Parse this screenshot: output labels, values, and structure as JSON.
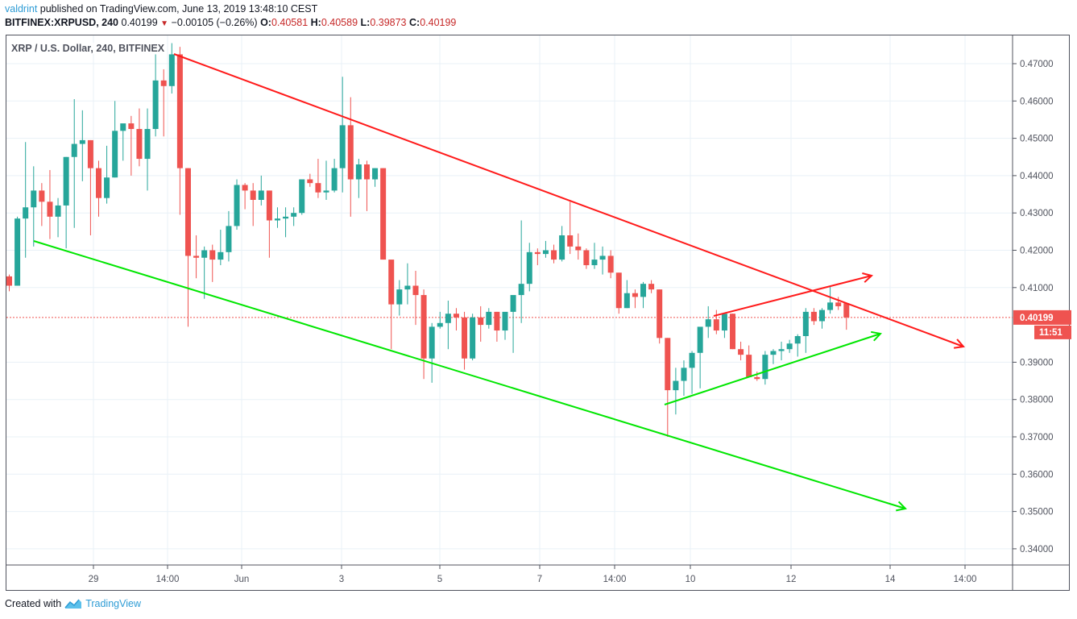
{
  "header": {
    "publisher": "valdrint",
    "published_text": "published on TradingView.com, June 13, 2019 13:48:10 CEST",
    "symbol": "BITFINEX:XRPUSD, 240",
    "last_price": "0.40199",
    "change_arrow": "▼",
    "change": "−0.00105 (−0.26%)",
    "open_label": "O:",
    "open": "0.40581",
    "high_label": "H:",
    "high": "0.40589",
    "low_label": "L:",
    "low": "0.39873",
    "close_label": "C:",
    "close": "0.40199"
  },
  "legend": {
    "title": "XRP / U.S. Dollar, 240, BITFINEX"
  },
  "price_badge": {
    "value": "0.40199",
    "countdown": "11:51",
    "color": "#ef5350"
  },
  "footer": {
    "created_with": "Created with",
    "brand": "TradingView"
  },
  "colors": {
    "up": "#26a69a",
    "down": "#ef5350",
    "resistance": "#ff1a1a",
    "support": "#00e600",
    "grid": "#e9f1f7",
    "price_line": "#ef5350"
  },
  "chart_data": {
    "type": "candlestick",
    "title": "XRP / U.S. Dollar, 240, BITFINEX",
    "xlabel": "",
    "ylabel": "",
    "ylim": [
      0.335,
      0.4755
    ],
    "y_ticks": [
      "0.47000",
      "0.46000",
      "0.45000",
      "0.44000",
      "0.43000",
      "0.42000",
      "0.41000",
      "0.39000",
      "0.38000",
      "0.37000",
      "0.36000",
      "0.35000",
      "0.34000"
    ],
    "x_ticks": [
      {
        "label": "29",
        "x": 116
      },
      {
        "label": "14:00",
        "x": 208
      },
      {
        "label": "Jun",
        "x": 300
      },
      {
        "label": "3",
        "x": 424
      },
      {
        "label": "5",
        "x": 546
      },
      {
        "label": "7",
        "x": 670
      },
      {
        "label": "14:00",
        "x": 763
      },
      {
        "label": "10",
        "x": 857
      },
      {
        "label": "12",
        "x": 982
      },
      {
        "label": "14",
        "x": 1105
      },
      {
        "label": "14:00",
        "x": 1198
      }
    ],
    "grid": true,
    "current_price": 0.40199,
    "candles_ohlc": [
      [
        0.413,
        0.4135,
        0.409,
        0.4105
      ],
      [
        0.4105,
        0.429,
        0.4105,
        0.4285
      ],
      [
        0.4285,
        0.449,
        0.418,
        0.4315
      ],
      [
        0.4315,
        0.4425,
        0.421,
        0.436
      ],
      [
        0.436,
        0.438,
        0.4265,
        0.433
      ],
      [
        0.433,
        0.4415,
        0.423,
        0.429
      ],
      [
        0.429,
        0.434,
        0.4235,
        0.432
      ],
      [
        0.432,
        0.445,
        0.4205,
        0.445
      ],
      [
        0.445,
        0.4605,
        0.426,
        0.4485
      ],
      [
        0.4485,
        0.4575,
        0.4385,
        0.4495
      ],
      [
        0.4495,
        0.4495,
        0.424,
        0.442
      ],
      [
        0.442,
        0.444,
        0.429,
        0.434
      ],
      [
        0.434,
        0.448,
        0.4325,
        0.4395
      ],
      [
        0.4395,
        0.46,
        0.4395,
        0.452
      ],
      [
        0.452,
        0.453,
        0.444,
        0.454
      ],
      [
        0.454,
        0.456,
        0.44,
        0.4525
      ],
      [
        0.4525,
        0.458,
        0.4425,
        0.4445
      ],
      [
        0.4445,
        0.458,
        0.436,
        0.4525
      ],
      [
        0.4525,
        0.4725,
        0.4505,
        0.4655
      ],
      [
        0.4655,
        0.4685,
        0.4505,
        0.464
      ],
      [
        0.464,
        0.4755,
        0.462,
        0.4725
      ],
      [
        0.4725,
        0.4745,
        0.4295,
        0.442
      ],
      [
        0.442,
        0.442,
        0.3995,
        0.4185
      ],
      [
        0.4185,
        0.424,
        0.4125,
        0.418
      ],
      [
        0.418,
        0.421,
        0.407,
        0.42
      ],
      [
        0.42,
        0.4215,
        0.4115,
        0.4175
      ],
      [
        0.4175,
        0.4255,
        0.416,
        0.4195
      ],
      [
        0.4195,
        0.4305,
        0.417,
        0.4265
      ],
      [
        0.4265,
        0.439,
        0.4255,
        0.4375
      ],
      [
        0.4375,
        0.438,
        0.431,
        0.436
      ],
      [
        0.436,
        0.438,
        0.4265,
        0.4335
      ],
      [
        0.4335,
        0.44,
        0.432,
        0.436
      ],
      [
        0.436,
        0.436,
        0.418,
        0.428
      ],
      [
        0.428,
        0.4315,
        0.426,
        0.4285
      ],
      [
        0.4285,
        0.4315,
        0.4235,
        0.429
      ],
      [
        0.429,
        0.4315,
        0.4265,
        0.43
      ],
      [
        0.43,
        0.438,
        0.4295,
        0.439
      ],
      [
        0.439,
        0.4405,
        0.437,
        0.438
      ],
      [
        0.438,
        0.4445,
        0.434,
        0.4355
      ],
      [
        0.4355,
        0.444,
        0.4335,
        0.436
      ],
      [
        0.436,
        0.4445,
        0.4355,
        0.442
      ],
      [
        0.442,
        0.4665,
        0.4355,
        0.4535
      ],
      [
        0.4535,
        0.461,
        0.429,
        0.439
      ],
      [
        0.439,
        0.4445,
        0.434,
        0.443
      ],
      [
        0.443,
        0.444,
        0.4305,
        0.439
      ],
      [
        0.439,
        0.442,
        0.437,
        0.442
      ],
      [
        0.442,
        0.442,
        0.4175,
        0.4175
      ],
      [
        0.4175,
        0.417,
        0.3935,
        0.4055
      ],
      [
        0.4055,
        0.412,
        0.4025,
        0.4095
      ],
      [
        0.4095,
        0.4165,
        0.4055,
        0.4105
      ],
      [
        0.4105,
        0.4145,
        0.4,
        0.408
      ],
      [
        0.408,
        0.4095,
        0.3855,
        0.391
      ],
      [
        0.391,
        0.4005,
        0.3845,
        0.3995
      ],
      [
        0.3995,
        0.4035,
        0.399,
        0.4005
      ],
      [
        0.4005,
        0.4065,
        0.3935,
        0.403
      ],
      [
        0.403,
        0.4045,
        0.3985,
        0.402
      ],
      [
        0.402,
        0.4035,
        0.388,
        0.391
      ],
      [
        0.391,
        0.403,
        0.3905,
        0.402
      ],
      [
        0.402,
        0.405,
        0.3955,
        0.4
      ],
      [
        0.4,
        0.4045,
        0.399,
        0.4035
      ],
      [
        0.4035,
        0.4035,
        0.3955,
        0.3985
      ],
      [
        0.3985,
        0.4005,
        0.396,
        0.4035
      ],
      [
        0.4035,
        0.407,
        0.3925,
        0.408
      ],
      [
        0.408,
        0.428,
        0.4005,
        0.411
      ],
      [
        0.411,
        0.422,
        0.409,
        0.4195
      ],
      [
        0.4195,
        0.4205,
        0.416,
        0.419
      ],
      [
        0.419,
        0.4225,
        0.418,
        0.42
      ],
      [
        0.42,
        0.4215,
        0.4165,
        0.4175
      ],
      [
        0.4175,
        0.4265,
        0.417,
        0.424
      ],
      [
        0.424,
        0.433,
        0.419,
        0.421
      ],
      [
        0.421,
        0.4245,
        0.4175,
        0.42
      ],
      [
        0.42,
        0.4205,
        0.415,
        0.416
      ],
      [
        0.416,
        0.422,
        0.415,
        0.4175
      ],
      [
        0.4175,
        0.421,
        0.4135,
        0.4185
      ],
      [
        0.4185,
        0.42,
        0.4125,
        0.414
      ],
      [
        0.414,
        0.414,
        0.403,
        0.4045
      ],
      [
        0.4045,
        0.412,
        0.4045,
        0.4085
      ],
      [
        0.4085,
        0.4095,
        0.4045,
        0.4075
      ],
      [
        0.4075,
        0.4115,
        0.4045,
        0.411
      ],
      [
        0.411,
        0.412,
        0.4085,
        0.4095
      ],
      [
        0.4095,
        0.4095,
        0.395,
        0.3965
      ],
      [
        0.3965,
        0.3965,
        0.37,
        0.3825
      ],
      [
        0.3825,
        0.3885,
        0.376,
        0.385
      ],
      [
        0.385,
        0.3905,
        0.381,
        0.3885
      ],
      [
        0.3885,
        0.393,
        0.3815,
        0.3925
      ],
      [
        0.3925,
        0.3985,
        0.383,
        0.3995
      ],
      [
        0.3995,
        0.405,
        0.3965,
        0.4015
      ],
      [
        0.4015,
        0.404,
        0.3975,
        0.3985
      ],
      [
        0.3985,
        0.403,
        0.3965,
        0.403
      ],
      [
        0.403,
        0.403,
        0.3935,
        0.3935
      ],
      [
        0.3935,
        0.3955,
        0.3905,
        0.392
      ],
      [
        0.392,
        0.3945,
        0.386,
        0.386
      ],
      [
        0.386,
        0.3875,
        0.385,
        0.3855
      ],
      [
        0.3855,
        0.393,
        0.384,
        0.392
      ],
      [
        0.392,
        0.3935,
        0.3895,
        0.393
      ],
      [
        0.393,
        0.3955,
        0.3905,
        0.3935
      ],
      [
        0.3935,
        0.396,
        0.3925,
        0.395
      ],
      [
        0.395,
        0.3975,
        0.3915,
        0.397
      ],
      [
        0.397,
        0.4045,
        0.3925,
        0.4035
      ],
      [
        0.4035,
        0.4045,
        0.4,
        0.401
      ],
      [
        0.401,
        0.4045,
        0.399,
        0.404
      ],
      [
        0.404,
        0.4105,
        0.403,
        0.406
      ],
      [
        0.406,
        0.4075,
        0.404,
        0.405
      ],
      [
        0.4058,
        0.4059,
        0.3987,
        0.402
      ]
    ],
    "trendlines": [
      {
        "name": "descending-resistance",
        "color": "#ff1a1a",
        "from": [
          216,
          67
        ],
        "to": [
          1196,
          430
        ],
        "arrow": true
      },
      {
        "name": "descending-support",
        "color": "#00e600",
        "from": [
          42,
          299
        ],
        "to": [
          1124,
          631
        ],
        "arrow": true
      },
      {
        "name": "rising-resistance",
        "color": "#ff1a1a",
        "from": [
          886,
          392
        ],
        "to": [
          1082,
          342
        ],
        "arrow": true
      },
      {
        "name": "rising-support",
        "color": "#00e600",
        "from": [
          825,
          502
        ],
        "to": [
          1093,
          414
        ],
        "arrow": true
      }
    ]
  }
}
